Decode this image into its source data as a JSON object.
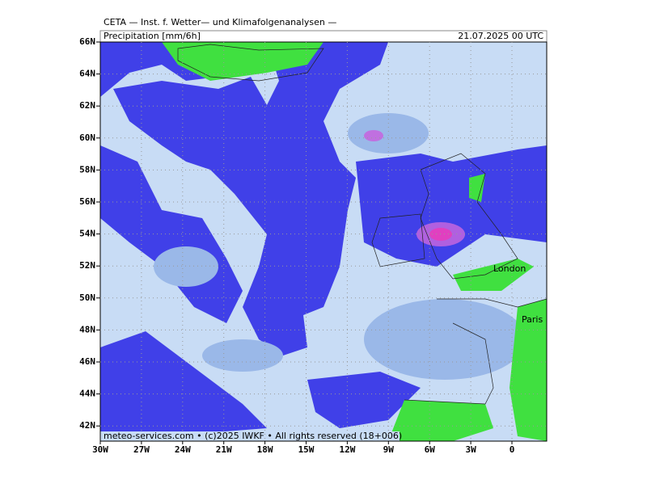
{
  "header": {
    "institute": "CETA — Inst. f. Wetter— und Klimafolgenanalysen —",
    "title": "Precipitation [mm/6h]",
    "valid_time": "21.07.2025 00 UTC"
  },
  "axes": {
    "x_labels": [
      "30W",
      "27W",
      "24W",
      "21W",
      "18W",
      "15W",
      "12W",
      "9W",
      "6W",
      "3W",
      "0"
    ],
    "y_labels": [
      "66N",
      "64N",
      "62N",
      "60N",
      "58N",
      "56N",
      "54N",
      "52N",
      "50N",
      "48N",
      "46N",
      "44N",
      "42N"
    ]
  },
  "places": {
    "london": "London",
    "paris": "Paris"
  },
  "footer": {
    "credit": "meteo-services.com • (c)2025 IWKF • All rights reserved (18+006)"
  }
}
